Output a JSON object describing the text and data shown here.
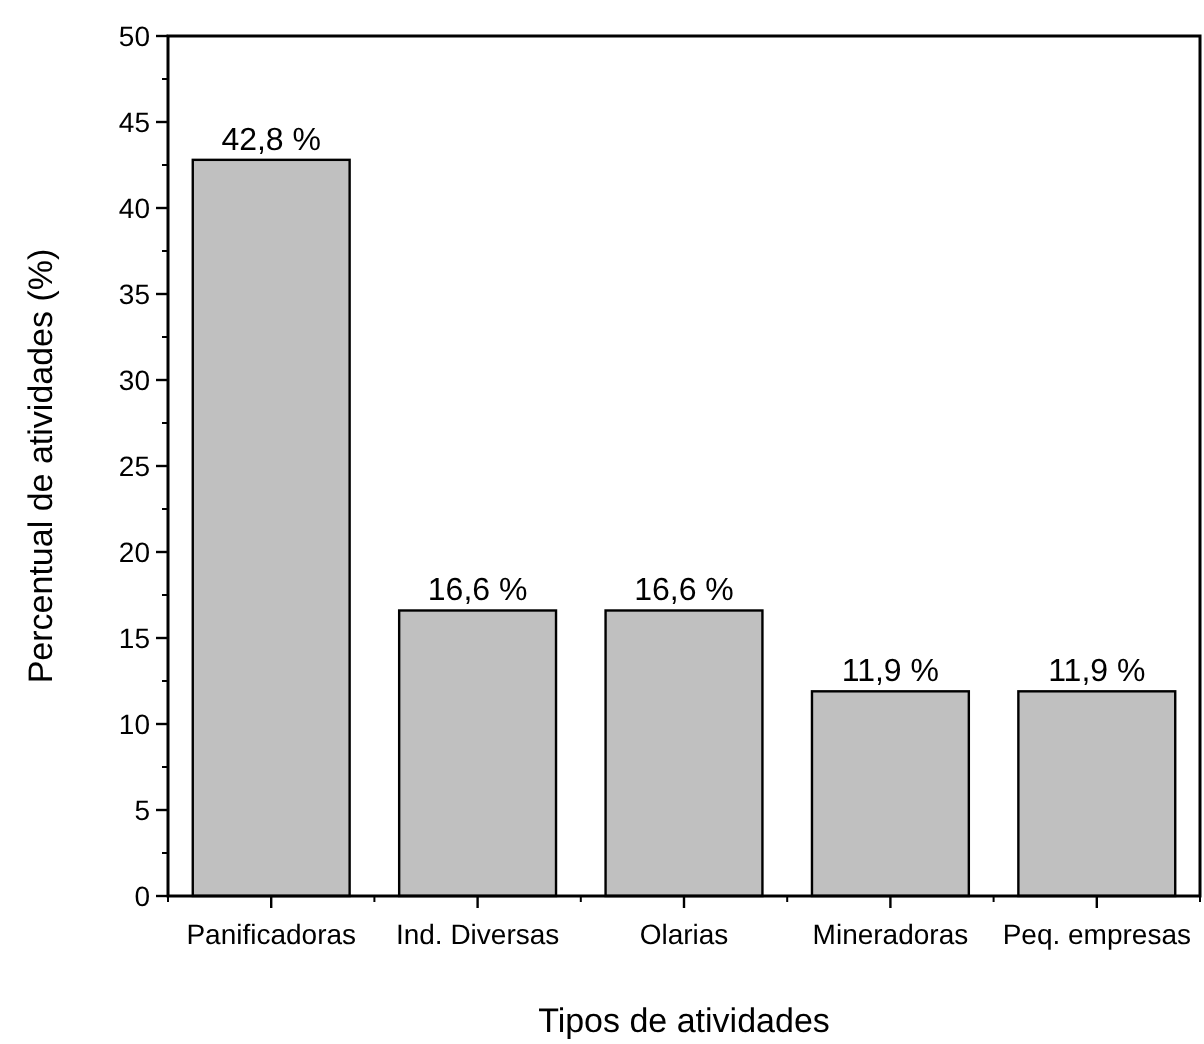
{
  "chart_data": {
    "type": "bar",
    "xlabel": "Tipos de atividades",
    "ylabel": "Percentual de atividades (%)",
    "categories": [
      "Panificadoras",
      "Ind. Diversas",
      "Olarias",
      "Mineradoras",
      "Peq. empresas"
    ],
    "values": [
      42.8,
      16.6,
      16.6,
      11.9,
      11.9
    ],
    "value_labels": [
      "42,8 %",
      "16,6 %",
      "16,6 %",
      "11,9 %",
      "11,9 %"
    ],
    "color": "#c0c0c0",
    "ylim": [
      0,
      50
    ],
    "yticks": [
      0,
      5,
      10,
      15,
      20,
      25,
      30,
      35,
      40,
      45,
      50
    ],
    "grid": false
  }
}
